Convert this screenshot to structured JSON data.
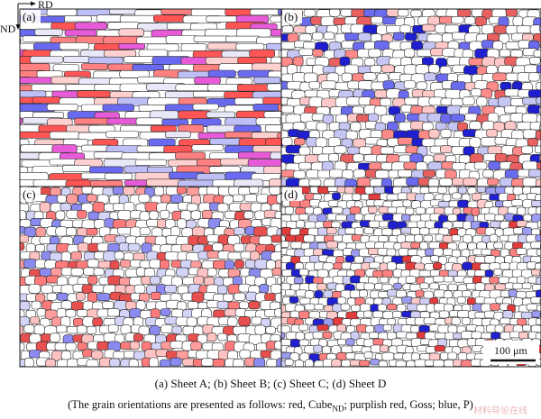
{
  "figure": {
    "axes_label_rd": "RD",
    "axes_label_nd": "ND",
    "panels": [
      {
        "id": "a",
        "label": "(a)",
        "sheet": "Sheet A",
        "seed": 11,
        "grain_rows": 26,
        "grain_cols": 9,
        "colored_fraction": 0.62,
        "palette": [
          "#e8e8f8",
          "#6a6af0",
          "#ff5555",
          "#ffd0d0",
          "#e85bd8",
          "#bfbff7",
          "#ff8080"
        ]
      },
      {
        "id": "b",
        "label": "(b)",
        "sheet": "Sheet B",
        "seed": 23,
        "grain_rows": 22,
        "grain_cols": 22,
        "colored_fraction": 0.38,
        "palette": [
          "#ff8a8a",
          "#ffc8c8",
          "#6b6bef",
          "#e86060",
          "#c6c6f5",
          "#1f1fd0"
        ]
      },
      {
        "id": "c",
        "label": "(c)",
        "sheet": "Sheet C",
        "seed": 37,
        "grain_rows": 22,
        "grain_cols": 25,
        "colored_fraction": 0.42,
        "palette": [
          "#ff7b7b",
          "#ffc2c2",
          "#e85050",
          "#8a8af0",
          "#d4d4f8",
          "#ff9d9d"
        ]
      },
      {
        "id": "d",
        "label": "(d)",
        "sheet": "Sheet D",
        "seed": 53,
        "grain_rows": 26,
        "grain_cols": 28,
        "colored_fraction": 0.28,
        "palette": [
          "#ff8080",
          "#ffcaca",
          "#e33c3c",
          "#9c9cf2",
          "#d0d0f6",
          "#2020d0"
        ]
      }
    ],
    "scale_bar_label": "100 μm"
  },
  "caption": {
    "line1": "(a)  Sheet  A;  (b)  Sheet  B;  (c) Sheet C; (d) Sheet D",
    "line2_prefix": "(The grain orientations are presented as follows: red, Cube",
    "line2_sub": "ND",
    "line2_suffix": "; purplish red, Goss; blue, P)"
  },
  "watermark": "材料导论在线"
}
